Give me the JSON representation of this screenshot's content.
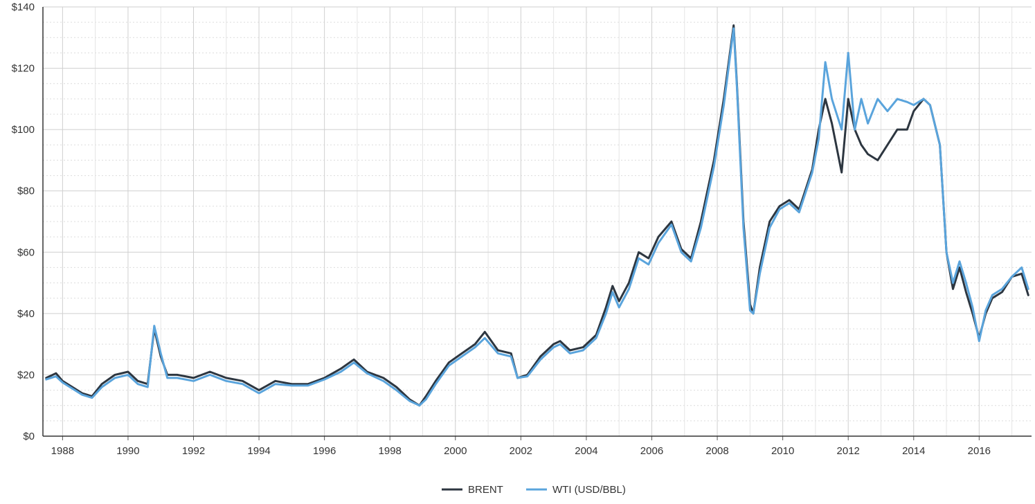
{
  "chart_data": {
    "type": "line",
    "title": "",
    "xlabel": "",
    "ylabel": "",
    "xlim": [
      1987.4,
      2017.6
    ],
    "ylim": [
      0,
      140
    ],
    "grid": true,
    "legend_position": "bottom-center",
    "y_ticks": [
      {
        "value": 0,
        "label": "$0"
      },
      {
        "value": 20,
        "label": "$20"
      },
      {
        "value": 40,
        "label": "$40"
      },
      {
        "value": 60,
        "label": "$60"
      },
      {
        "value": 80,
        "label": "$80"
      },
      {
        "value": 100,
        "label": "$100"
      },
      {
        "value": 120,
        "label": "$120"
      },
      {
        "value": 140,
        "label": "$140"
      }
    ],
    "x_ticks": [
      {
        "value": 1988,
        "label": "1988"
      },
      {
        "value": 1990,
        "label": "1990"
      },
      {
        "value": 1992,
        "label": "1992"
      },
      {
        "value": 1994,
        "label": "1994"
      },
      {
        "value": 1996,
        "label": "1996"
      },
      {
        "value": 1998,
        "label": "1998"
      },
      {
        "value": 2000,
        "label": "2000"
      },
      {
        "value": 2002,
        "label": "2002"
      },
      {
        "value": 2004,
        "label": "2004"
      },
      {
        "value": 2006,
        "label": "2006"
      },
      {
        "value": 2008,
        "label": "2008"
      },
      {
        "value": 2010,
        "label": "2010"
      },
      {
        "value": 2012,
        "label": "2012"
      },
      {
        "value": 2014,
        "label": "2014"
      },
      {
        "value": 2016,
        "label": "2016"
      }
    ],
    "series": [
      {
        "name": "BRENT",
        "color": "#2d3640",
        "x": [
          1987.5,
          1987.8,
          1988.0,
          1988.3,
          1988.6,
          1988.9,
          1989.2,
          1989.6,
          1990.0,
          1990.3,
          1990.6,
          1990.8,
          1991.0,
          1991.2,
          1991.5,
          1992.0,
          1992.5,
          1993.0,
          1993.5,
          1994.0,
          1994.5,
          1995.0,
          1995.5,
          1996.0,
          1996.5,
          1996.9,
          1997.3,
          1997.8,
          1998.2,
          1998.6,
          1998.9,
          1999.1,
          1999.4,
          1999.8,
          2000.2,
          2000.6,
          2000.9,
          2001.3,
          2001.7,
          2001.9,
          2002.2,
          2002.6,
          2003.0,
          2003.2,
          2003.5,
          2003.9,
          2004.3,
          2004.6,
          2004.8,
          2005.0,
          2005.3,
          2005.6,
          2005.9,
          2006.2,
          2006.6,
          2006.9,
          2007.2,
          2007.5,
          2007.9,
          2008.2,
          2008.5,
          2008.6,
          2008.8,
          2009.0,
          2009.1,
          2009.3,
          2009.6,
          2009.9,
          2010.2,
          2010.5,
          2010.9,
          2011.1,
          2011.3,
          2011.5,
          2011.8,
          2012.0,
          2012.2,
          2012.4,
          2012.6,
          2012.9,
          2013.2,
          2013.5,
          2013.8,
          2014.0,
          2014.3,
          2014.5,
          2014.8,
          2015.0,
          2015.2,
          2015.4,
          2015.6,
          2015.8,
          2016.0,
          2016.2,
          2016.4,
          2016.7,
          2017.0,
          2017.3,
          2017.5
        ],
        "values": [
          19,
          20.5,
          18,
          16,
          14,
          13,
          17,
          20,
          21,
          18,
          17,
          35,
          26,
          20,
          20,
          19,
          21,
          19,
          18,
          15,
          18,
          17,
          17,
          19,
          22,
          25,
          21,
          19,
          16,
          12,
          10,
          13,
          18,
          24,
          27,
          30,
          34,
          28,
          27,
          19,
          20,
          26,
          30,
          31,
          28,
          29,
          33,
          42,
          49,
          44,
          50,
          60,
          58,
          65,
          70,
          61,
          58,
          70,
          90,
          110,
          134,
          115,
          70,
          43,
          40,
          55,
          70,
          75,
          77,
          74,
          87,
          100,
          110,
          102,
          86,
          110,
          100,
          95,
          92,
          90,
          95,
          100,
          100,
          106,
          110,
          108,
          95,
          60,
          48,
          55,
          47,
          40,
          32,
          40,
          45,
          47,
          52,
          53,
          46
        ]
      },
      {
        "name": "WTI (USD/BBL)",
        "color": "#5aa4dc",
        "x": [
          1987.5,
          1987.8,
          1988.0,
          1988.3,
          1988.6,
          1988.9,
          1989.2,
          1989.6,
          1990.0,
          1990.3,
          1990.6,
          1990.8,
          1991.0,
          1991.2,
          1991.5,
          1992.0,
          1992.5,
          1993.0,
          1993.5,
          1994.0,
          1994.5,
          1995.0,
          1995.5,
          1996.0,
          1996.5,
          1996.9,
          1997.3,
          1997.8,
          1998.2,
          1998.6,
          1998.9,
          1999.1,
          1999.4,
          1999.8,
          2000.2,
          2000.6,
          2000.9,
          2001.3,
          2001.7,
          2001.9,
          2002.2,
          2002.6,
          2003.0,
          2003.2,
          2003.5,
          2003.9,
          2004.3,
          2004.6,
          2004.8,
          2005.0,
          2005.3,
          2005.6,
          2005.9,
          2006.2,
          2006.6,
          2006.9,
          2007.2,
          2007.5,
          2007.9,
          2008.2,
          2008.5,
          2008.6,
          2008.8,
          2009.0,
          2009.1,
          2009.3,
          2009.6,
          2009.9,
          2010.2,
          2010.5,
          2010.9,
          2011.1,
          2011.3,
          2011.5,
          2011.8,
          2012.0,
          2012.2,
          2012.4,
          2012.6,
          2012.9,
          2013.2,
          2013.5,
          2013.8,
          2014.0,
          2014.3,
          2014.5,
          2014.8,
          2015.0,
          2015.2,
          2015.4,
          2015.6,
          2015.8,
          2016.0,
          2016.2,
          2016.4,
          2016.7,
          2017.0,
          2017.3,
          2017.5
        ],
        "values": [
          18.5,
          19.5,
          17.5,
          15.5,
          13.5,
          12.5,
          16,
          19,
          20,
          17,
          16,
          36,
          27,
          19,
          19,
          18,
          20,
          18,
          17,
          14,
          17,
          16.5,
          16.5,
          18.5,
          21,
          24,
          20.5,
          18,
          15,
          11.5,
          10,
          12,
          17,
          23,
          26,
          29,
          32,
          27,
          26,
          19,
          19.5,
          25,
          29,
          30,
          27,
          28,
          32,
          40,
          47,
          42,
          48,
          58,
          56,
          63,
          69,
          60,
          57,
          68,
          88,
          108,
          133,
          114,
          68,
          41,
          40,
          53,
          68,
          74,
          76,
          73,
          86,
          97,
          122,
          110,
          100,
          125,
          100,
          110,
          102,
          110,
          106,
          110,
          109,
          108,
          110,
          108,
          95,
          60,
          50,
          57,
          50,
          42,
          31,
          41,
          46,
          48,
          52,
          55,
          48
        ]
      }
    ]
  }
}
